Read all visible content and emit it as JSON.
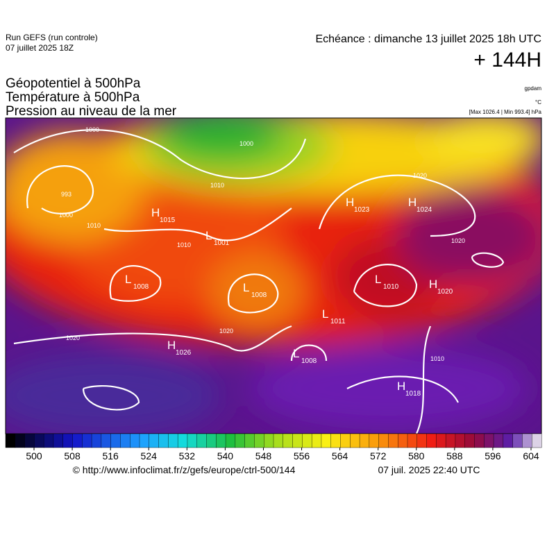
{
  "header": {
    "run": "Run GEFS (run controle)",
    "run_date": "07 juillet 2025 18Z",
    "echeance": "Echéance : dimanche 13 juillet 2025 18h UTC",
    "lead": "+ 144H",
    "titles": [
      "Géopotentiel à 500hPa",
      "Température à 500hPa",
      "Pression au niveau de la mer"
    ],
    "units": [
      "gpdam",
      "°C",
      "[Max 1026.4 | Min 993.4] hPa"
    ]
  },
  "map": {
    "centers": [
      {
        "kind": "H",
        "value": 1015
      },
      {
        "kind": "L",
        "value": 1001
      },
      {
        "kind": "H",
        "value": 1023
      },
      {
        "kind": "H",
        "value": 1024
      },
      {
        "kind": "L",
        "value": 1008
      },
      {
        "kind": "L",
        "value": 1008
      },
      {
        "kind": "L",
        "value": 1010
      },
      {
        "kind": "H",
        "value": 1020
      },
      {
        "kind": "L",
        "value": 1011
      },
      {
        "kind": "H",
        "value": 1026
      },
      {
        "kind": "L",
        "value": 1008
      },
      {
        "kind": "H",
        "value": 1018
      }
    ],
    "isobar_labels": [
      "1000",
      "1000",
      "1000",
      "1010",
      "1010",
      "1010",
      "1020",
      "1020",
      "1020",
      "1020",
      "993",
      "1010"
    ]
  },
  "colorbar": {
    "ticks": [
      500,
      508,
      516,
      524,
      532,
      540,
      548,
      556,
      564,
      572,
      580,
      588,
      596,
      604
    ]
  },
  "footer": {
    "source": "© http://www.infoclimat.fr/z/gefs/europe/ctrl-500/144",
    "issued": "07 juil. 2025 22:40 UTC"
  }
}
